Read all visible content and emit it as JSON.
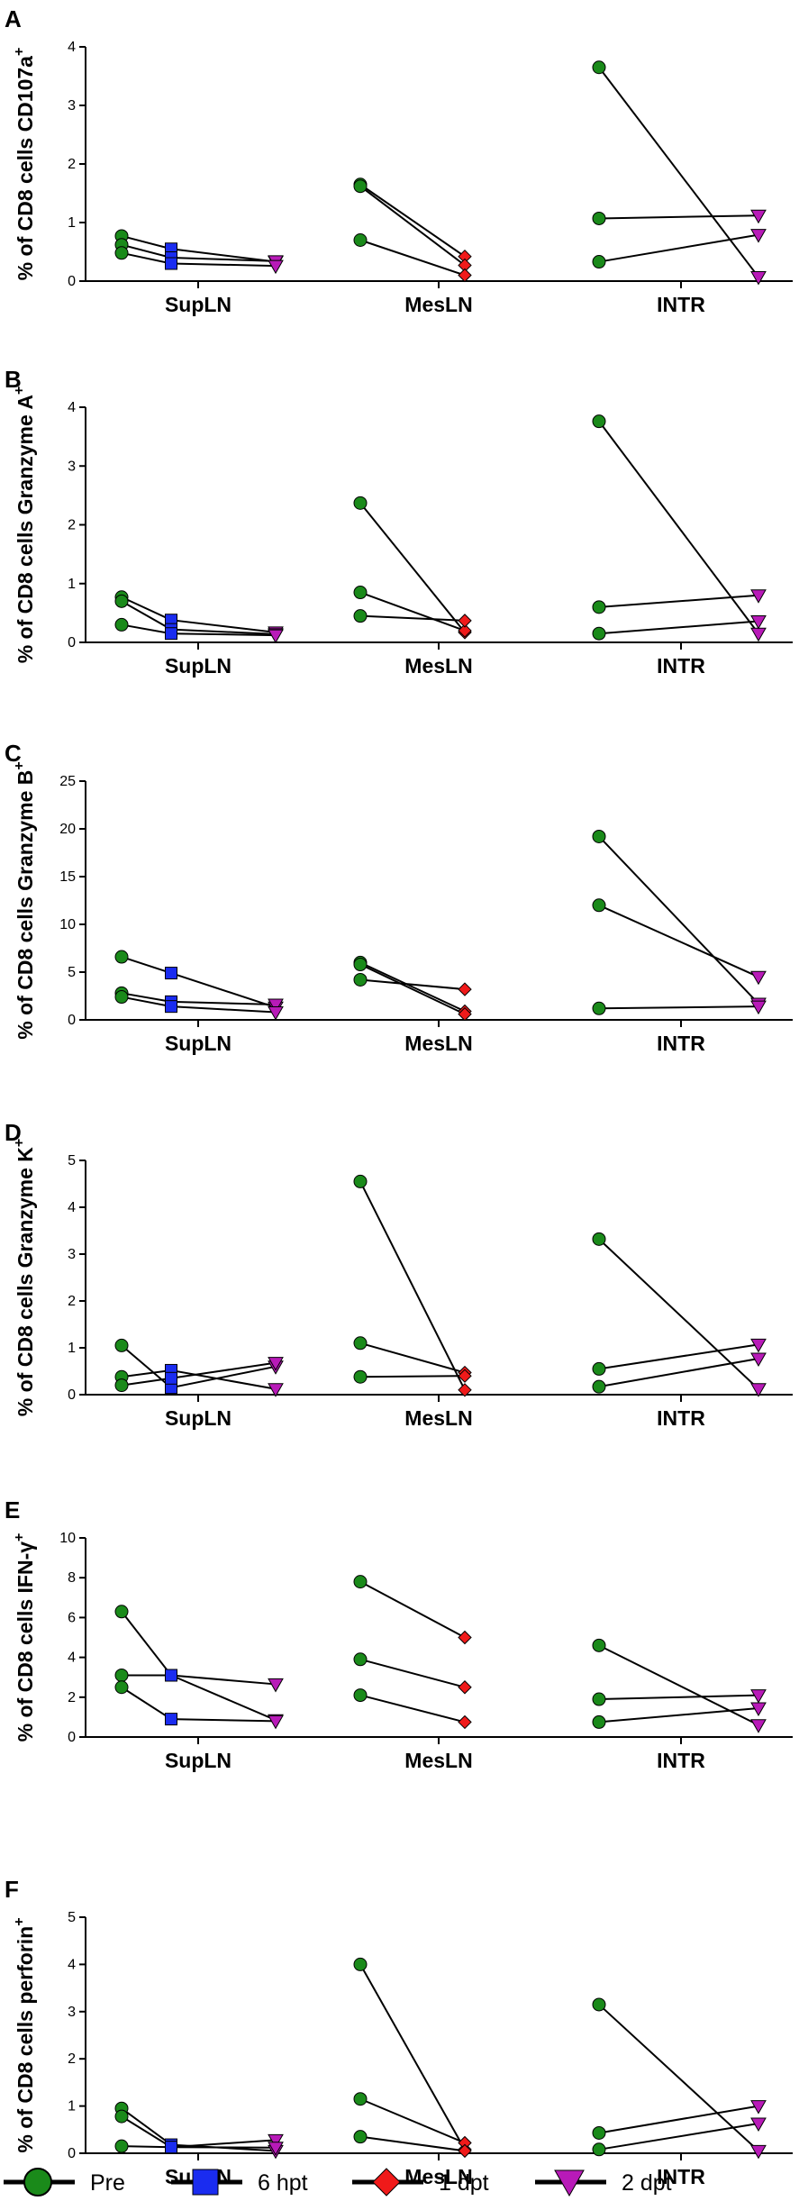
{
  "chart_data": [
    {
      "type": "scatter",
      "panel": "A",
      "ylabel": "% of CD8 cells CD107a",
      "ylabel_sup": "+",
      "ylim": [
        0,
        4
      ],
      "yticks": [
        0,
        1,
        2,
        3,
        4
      ],
      "tick_labels": [
        "0",
        "1",
        "2",
        "3",
        "4"
      ],
      "categories": [
        "SupLN",
        "MesLN",
        "INTR"
      ],
      "subjects": [
        {
          "name": "subject-1",
          "SupLN": [
            0.77,
            0.55,
            0.33
          ],
          "MesLN": [
            1.65,
            0.42
          ],
          "INTR": [
            3.65,
            0.07
          ]
        },
        {
          "name": "subject-2",
          "SupLN": [
            0.62,
            0.4,
            0.34
          ],
          "MesLN": [
            1.62,
            0.27
          ],
          "INTR": [
            1.07,
            1.12
          ]
        },
        {
          "name": "subject-3",
          "SupLN": [
            0.48,
            0.3,
            0.26
          ],
          "MesLN": [
            0.7,
            0.1
          ],
          "INTR": [
            0.33,
            0.79
          ]
        }
      ]
    },
    {
      "type": "scatter",
      "panel": "B",
      "ylabel": "% of CD8 cells Granzyme A",
      "ylabel_sup": "+",
      "ylim": [
        0,
        4
      ],
      "yticks": [
        0,
        1,
        2,
        3,
        4
      ],
      "tick_labels": [
        "0",
        "1",
        "2",
        "3",
        "4"
      ],
      "categories": [
        "SupLN",
        "MesLN",
        "INTR"
      ],
      "subjects": [
        {
          "name": "subject-1",
          "SupLN": [
            0.77,
            0.38,
            0.17
          ],
          "MesLN": [
            2.37,
            0.17
          ],
          "INTR": [
            3.76,
            0.15
          ]
        },
        {
          "name": "subject-2",
          "SupLN": [
            0.7,
            0.22,
            0.14
          ],
          "MesLN": [
            0.85,
            0.2
          ],
          "INTR": [
            0.6,
            0.8
          ]
        },
        {
          "name": "subject-3",
          "SupLN": [
            0.3,
            0.15,
            0.12
          ],
          "MesLN": [
            0.45,
            0.37
          ],
          "INTR": [
            0.15,
            0.36
          ]
        }
      ]
    },
    {
      "type": "scatter",
      "panel": "C",
      "ylabel": "% of CD8 cells Granzyme B",
      "ylabel_sup": "+",
      "ylim": [
        0,
        25
      ],
      "yticks": [
        0,
        5,
        10,
        15,
        20,
        25
      ],
      "tick_labels": [
        "0",
        "5",
        "10",
        "15",
        "20",
        "25"
      ],
      "categories": [
        "SupLN",
        "MesLN",
        "INTR"
      ],
      "subjects": [
        {
          "name": "subject-1",
          "SupLN": [
            6.6,
            4.9,
            1.3
          ],
          "MesLN": [
            6.0,
            0.9
          ],
          "INTR": [
            19.2,
            1.7
          ]
        },
        {
          "name": "subject-2",
          "SupLN": [
            2.8,
            1.9,
            1.6
          ],
          "MesLN": [
            5.8,
            0.6
          ],
          "INTR": [
            12.0,
            4.5
          ]
        },
        {
          "name": "subject-3",
          "SupLN": [
            2.4,
            1.4,
            0.8
          ],
          "MesLN": [
            4.2,
            3.2
          ],
          "INTR": [
            1.2,
            1.4
          ]
        }
      ]
    },
    {
      "type": "scatter",
      "panel": "D",
      "ylabel": "% of CD8 cells Granzyme K",
      "ylabel_sup": "+",
      "ylim": [
        0,
        5
      ],
      "yticks": [
        0,
        1,
        2,
        3,
        4,
        5
      ],
      "tick_labels": [
        "0",
        "1",
        "2",
        "3",
        "4",
        "5"
      ],
      "categories": [
        "SupLN",
        "MesLN",
        "INTR"
      ],
      "subjects": [
        {
          "name": "subject-1",
          "SupLN": [
            1.05,
            0.15,
            0.6
          ],
          "MesLN": [
            4.55,
            0.1
          ],
          "INTR": [
            3.32,
            0.12
          ]
        },
        {
          "name": "subject-2",
          "SupLN": [
            0.38,
            0.52,
            0.12
          ],
          "MesLN": [
            1.1,
            0.47
          ],
          "INTR": [
            0.55,
            1.07
          ]
        },
        {
          "name": "subject-3",
          "SupLN": [
            0.2,
            0.35,
            0.68
          ],
          "MesLN": [
            0.38,
            0.4
          ],
          "INTR": [
            0.17,
            0.77
          ]
        }
      ]
    },
    {
      "type": "scatter",
      "panel": "E",
      "ylabel": "% of CD8 cells IFN-γ",
      "ylabel_sup": "+",
      "ylim": [
        0,
        10
      ],
      "yticks": [
        0,
        2,
        4,
        6,
        8,
        10
      ],
      "tick_labels": [
        "0",
        "2",
        "4",
        "6",
        "8",
        "10"
      ],
      "categories": [
        "SupLN",
        "MesLN",
        "INTR"
      ],
      "subjects": [
        {
          "name": "subject-1",
          "SupLN": [
            6.3,
            3.1,
            0.85
          ],
          "MesLN": [
            7.8,
            5.0
          ],
          "INTR": [
            4.6,
            0.6
          ]
        },
        {
          "name": "subject-2",
          "SupLN": [
            3.1,
            3.1,
            2.65
          ],
          "MesLN": [
            3.9,
            2.5
          ],
          "INTR": [
            1.9,
            2.1
          ]
        },
        {
          "name": "subject-3",
          "SupLN": [
            2.5,
            0.9,
            0.8
          ],
          "MesLN": [
            2.1,
            0.75
          ],
          "INTR": [
            0.75,
            1.45
          ]
        }
      ]
    },
    {
      "type": "scatter",
      "panel": "F",
      "ylabel": "% of CD8 cells perforin",
      "ylabel_sup": "+",
      "ylim": [
        0,
        5
      ],
      "yticks": [
        0,
        1,
        2,
        3,
        4,
        5
      ],
      "tick_labels": [
        "0",
        "1",
        "2",
        "3",
        "4",
        "5"
      ],
      "categories": [
        "SupLN",
        "MesLN",
        "INTR"
      ],
      "subjects": [
        {
          "name": "subject-1",
          "SupLN": [
            0.95,
            0.18,
            0.05
          ],
          "MesLN": [
            4.0,
            0.08
          ],
          "INTR": [
            3.15,
            0.05
          ]
        },
        {
          "name": "subject-2",
          "SupLN": [
            0.78,
            0.13,
            0.28
          ],
          "MesLN": [
            1.15,
            0.22
          ],
          "INTR": [
            0.43,
            1.0
          ]
        },
        {
          "name": "subject-3",
          "SupLN": [
            0.15,
            0.13,
            0.12
          ],
          "MesLN": [
            0.35,
            0.05
          ],
          "INTR": [
            0.08,
            0.63
          ]
        }
      ]
    }
  ],
  "legend": [
    {
      "key": "pre",
      "label": "Pre",
      "marker": "circle",
      "color": "#1a8a1a"
    },
    {
      "key": "6hpt",
      "label": "6 hpt",
      "marker": "square",
      "color": "#1a2cf0"
    },
    {
      "key": "1dpt",
      "label": "1 dpt",
      "marker": "diamond",
      "color": "#f01a1a"
    },
    {
      "key": "2dpt",
      "label": "2 dpt",
      "marker": "triangle-down",
      "color": "#b81ab8"
    }
  ],
  "category_timepoints": {
    "SupLN": [
      "pre",
      "6hpt",
      "2dpt"
    ],
    "MesLN": [
      "pre",
      "1dpt"
    ],
    "INTR": [
      "pre",
      "2dpt"
    ]
  },
  "colors": {
    "axis": "#000000",
    "line": "#000000",
    "marker_edge": "#000000"
  }
}
